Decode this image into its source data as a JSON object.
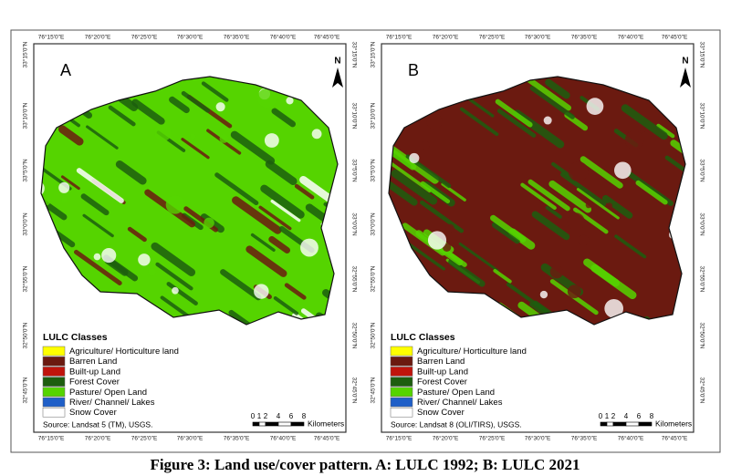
{
  "figure": {
    "longitude_ticks": [
      "76°15'0\"E",
      "76°20'0\"E",
      "76°25'0\"E",
      "76°30'0\"E",
      "76°35'0\"E",
      "76°40'0\"E",
      "76°45'0\"E"
    ],
    "latitude_ticks": [
      "33°15'0\"N",
      "33°10'0\"N",
      "33°5'0\"N",
      "33°0'0\"N",
      "32°55'0\"N",
      "32°50'0\"N",
      "32°45'0\"N"
    ],
    "north": "N",
    "legend_title": "LULC Classes",
    "legend": [
      {
        "label": "Agriculture/ Horticulture land",
        "color": "#ffff00"
      },
      {
        "label": "Barren Land",
        "color": "#6b1a10"
      },
      {
        "label": "Built-up Land",
        "color": "#c0140c"
      },
      {
        "label": "Forest Cover",
        "color": "#1d5e0f"
      },
      {
        "label": "Pasture/ Open Land",
        "color": "#55d400"
      },
      {
        "label": "River/ Channel/ Lakes",
        "color": "#1f5fc8"
      },
      {
        "label": "Snow Cover",
        "color": "#ffffff"
      }
    ],
    "scale_ticks": [
      "0",
      "1",
      "2",
      "4",
      "6",
      "8"
    ],
    "scale_unit": "Kilometers",
    "maps": [
      {
        "label": "A",
        "source": "Source: Landsat 5 (TM), USGS."
      },
      {
        "label": "B",
        "source": "Source: Landsat 8 (OLI/TIRS), USGS."
      }
    ],
    "caption": "Figure 3: Land use/cover pattern. A: LULC 1992; B: LULC 2021"
  }
}
